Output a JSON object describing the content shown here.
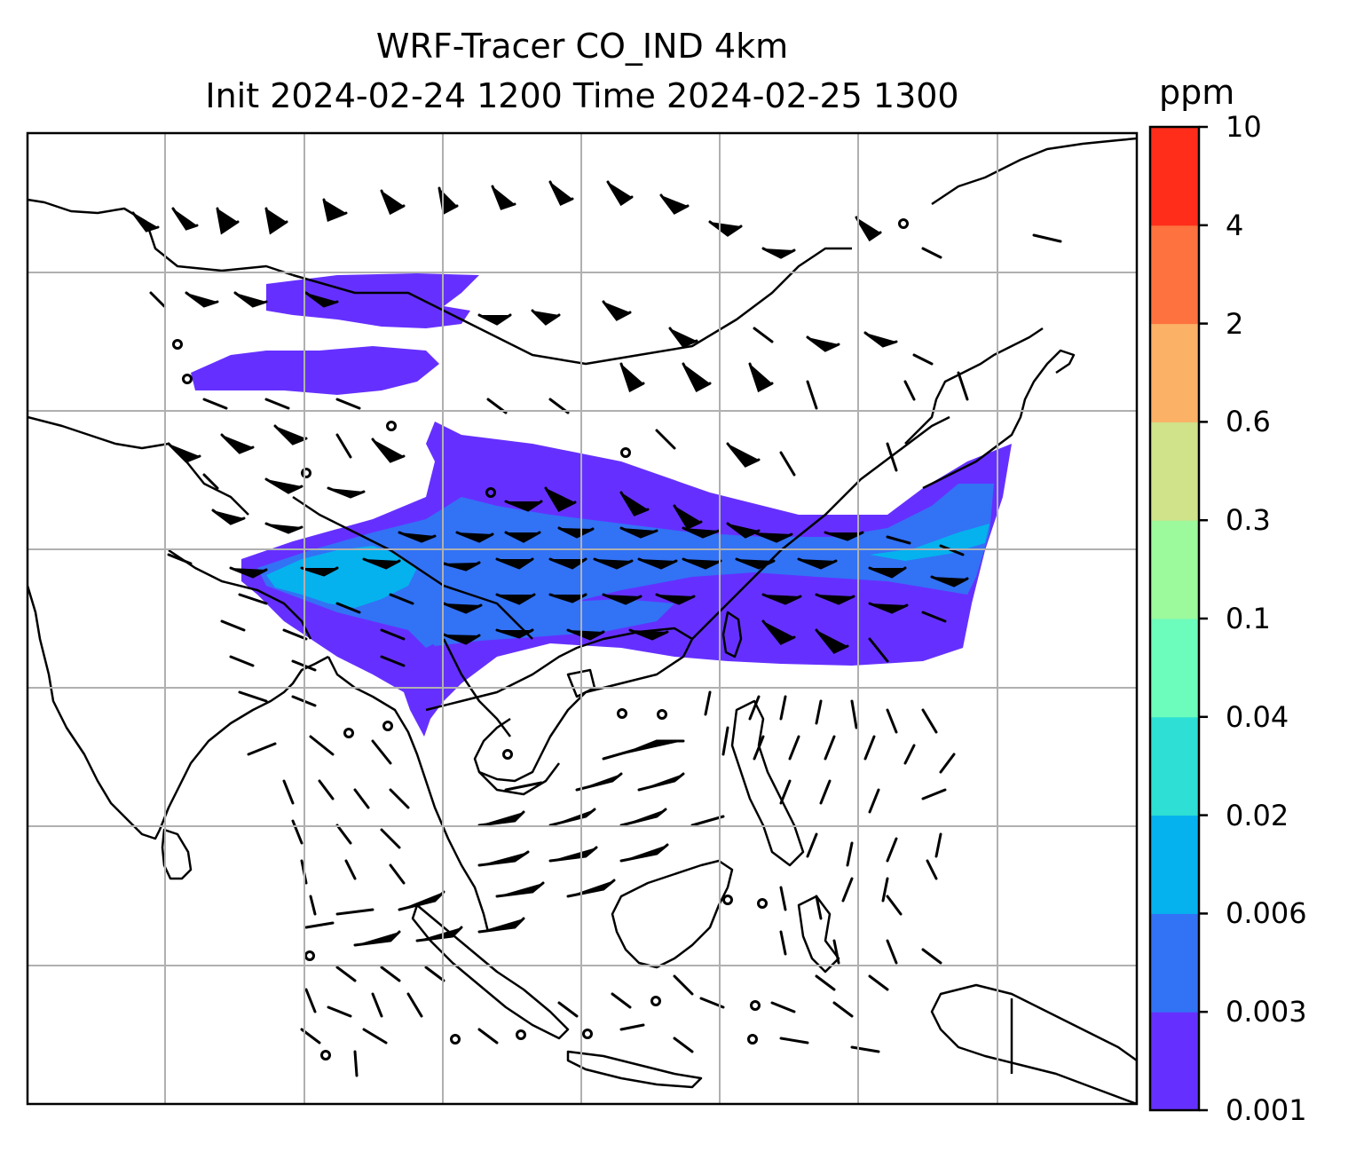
{
  "title": {
    "line1": "WRF-Tracer CO_IND 4km",
    "line2": "Init 2024-02-24 1200 Time 2024-02-25 1300"
  },
  "colorbar": {
    "unit": "ppm",
    "levels": [
      "0.001",
      "0.003",
      "0.006",
      "0.02",
      "0.04",
      "0.1",
      "0.3",
      "0.6",
      "2",
      "4",
      "10"
    ],
    "colors": [
      "#6530ff",
      "#3272f5",
      "#05b2ee",
      "#2ddfd4",
      "#6cfcbc",
      "#9cf99c",
      "#d0e28a",
      "#fbb166",
      "#fd723e",
      "#ff2d1a"
    ]
  },
  "map": {
    "field": "CO_IND tracer concentration with wind barbs",
    "gridlines": true
  }
}
